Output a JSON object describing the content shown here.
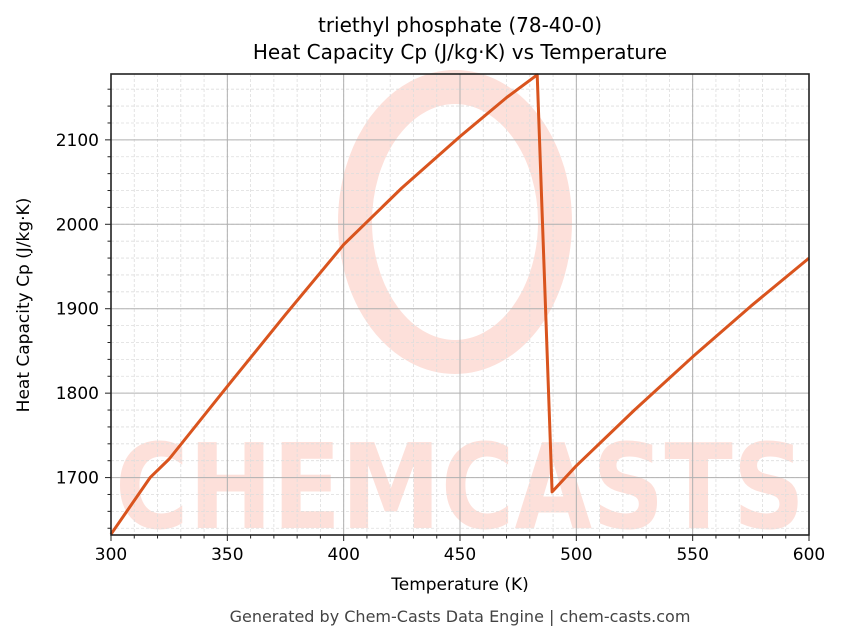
{
  "title": {
    "line1": "triethyl phosphate (78-40-0)",
    "line2": "Heat Capacity Cp (J/kg·K) vs Temperature"
  },
  "footer": "Generated by Chem-Casts Data Engine | chem-casts.com",
  "watermark": {
    "text": "CHEMCASTS",
    "color": "#fde0da"
  },
  "colors": {
    "line": "#d9541e",
    "grid_major": "#b0b0b0",
    "grid_minor": "#dddddd",
    "axis": "#222222"
  },
  "chart_data": {
    "type": "line",
    "title": "triethyl phosphate (78-40-0)\nHeat Capacity Cp (J/kg·K) vs Temperature",
    "xlabel": "Temperature (K)",
    "ylabel": "Heat Capacity Cp (J/kg·K)",
    "xlim": [
      300,
      600
    ],
    "ylim": [
      1632,
      2178
    ],
    "xticks": [
      300,
      350,
      400,
      450,
      500,
      550,
      600
    ],
    "yticks": [
      1700,
      1800,
      1900,
      2000,
      2100
    ],
    "x_minor_step": 10,
    "y_minor_step": 20,
    "grid": true,
    "legend": null,
    "series": [
      {
        "name": "Cp",
        "x": [
          300,
          316.8,
          325,
          350,
          375,
          400,
          425,
          450,
          470,
          483.2,
          489.6,
          500,
          525,
          550,
          575,
          600
        ],
        "y": [
          1633,
          1700,
          1722,
          1808,
          1893,
          1976,
          2043,
          2104,
          2150,
          2177,
          1683,
          1714,
          1780,
          1843,
          1903,
          1960
        ]
      }
    ]
  }
}
